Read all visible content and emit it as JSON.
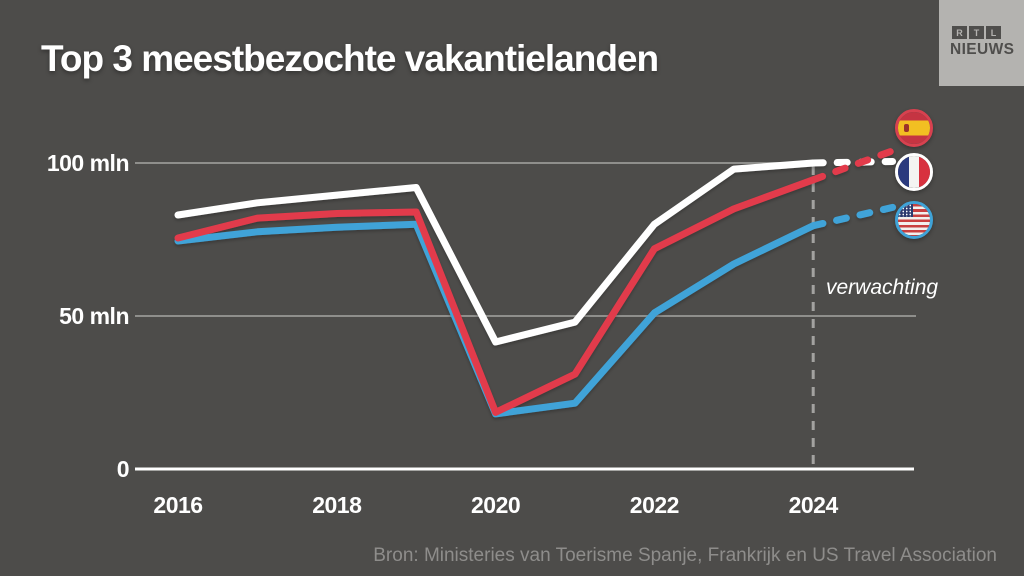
{
  "page": {
    "background_color": "#4d4c4a"
  },
  "header": {
    "title": "Top 3 meestbezochte vakantielanden",
    "logo": {
      "letters": [
        "R",
        "T",
        "L"
      ],
      "name": "NIEUWS"
    }
  },
  "chart_data": {
    "type": "line",
    "title": "Top 3 meestbezochte vakantielanden",
    "unit": "mln",
    "x": [
      2016,
      2017,
      2018,
      2019,
      2020,
      2021,
      2022,
      2023,
      2024,
      2025
    ],
    "x_tick_labels": [
      "2016",
      "2018",
      "2020",
      "2022",
      "2024"
    ],
    "y_ticks": [
      {
        "value": 100,
        "label": "100 mln"
      },
      {
        "value": 50,
        "label": "50 mln"
      },
      {
        "value": 0,
        "label": "0"
      }
    ],
    "ylim": [
      0,
      110
    ],
    "grid": "horizontal",
    "legend_position": "right-flags",
    "forecast": {
      "from_x": 2024,
      "label": "verwachting"
    },
    "series": [
      {
        "name": "Spanje",
        "flag_icon": "spain-flag-icon",
        "color": "#e23b4c",
        "values": [
          75.5,
          82,
          83.5,
          84,
          18.5,
          31,
          72,
          85,
          94.5,
          104
        ]
      },
      {
        "name": "Frankrijk",
        "flag_icon": "france-flag-icon",
        "color": "#ffffff",
        "values": [
          83,
          87,
          89.5,
          92,
          41.5,
          48,
          80,
          98,
          100,
          100.5
        ]
      },
      {
        "name": "Verenigde Staten",
        "flag_icon": "usa-flag-icon",
        "color": "#3fa3d8",
        "values": [
          74.5,
          77.5,
          79,
          80,
          18,
          21.5,
          51,
          67,
          79.5,
          85.5
        ]
      }
    ],
    "colors": {
      "gridline": "#8f8f8c",
      "axis": "#ffffff",
      "forecast_divider": "#a3a2a0"
    }
  },
  "footer": {
    "source": "Bron: Ministeries van Toerisme Spanje, Frankrijk en US Travel Association"
  }
}
